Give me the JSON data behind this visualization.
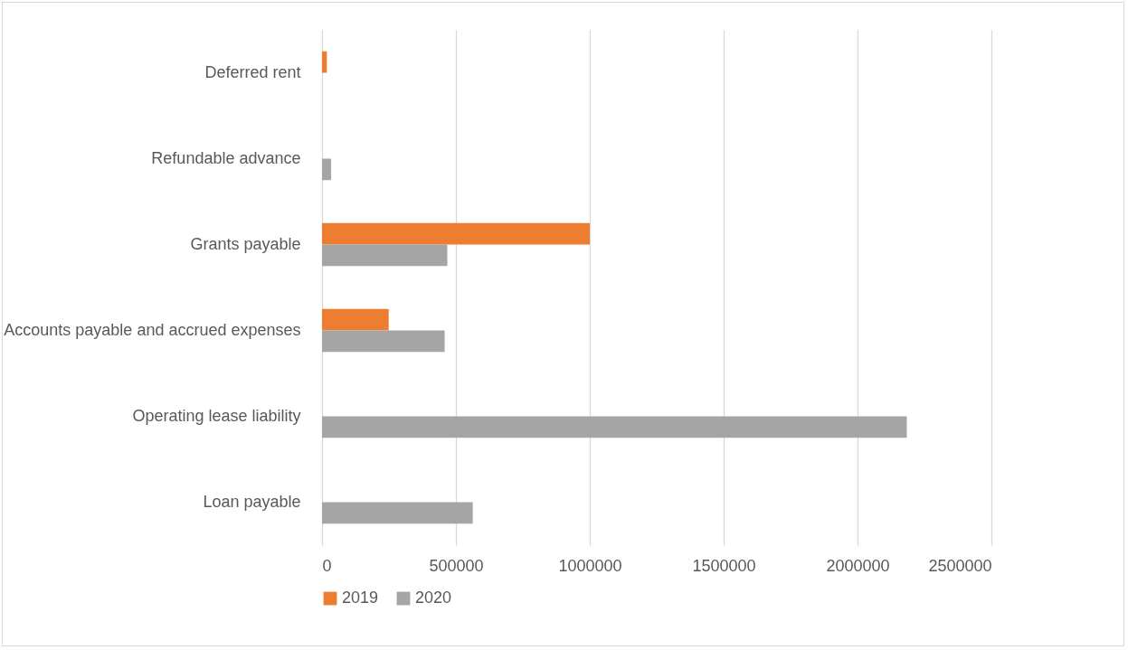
{
  "chart_data": {
    "type": "bar",
    "orientation": "horizontal",
    "categories": [
      "Deferred rent",
      "Refundable advance",
      "Grants payable",
      "Accounts payable and accrued expenses",
      "Operating lease liability",
      "Loan payable"
    ],
    "series": [
      {
        "name": "2019",
        "color": "#ed7d31",
        "values": [
          18000,
          null,
          1000000,
          249000,
          null,
          null
        ]
      },
      {
        "name": "2020",
        "color": "#a5a5a5",
        "values": [
          null,
          34000,
          468000,
          458000,
          2184000,
          563000
        ]
      }
    ],
    "xlim": [
      0,
      2500000
    ],
    "xticks": [
      0,
      500000,
      1000000,
      1500000,
      2000000,
      2500000
    ],
    "grid": "x",
    "legend": "bottom"
  }
}
